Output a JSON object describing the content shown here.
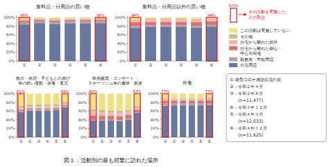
{
  "title": "図１：活動別の最も頻繁に訪れた場所",
  "legend_key": {
    "label": "OO%",
    "text": "その活動を実施した\n人の割合",
    "color": "#E00000"
  },
  "notes": [
    "①:新型コロナ感染症流行前",
    "②：令和２年４月",
    "③：令和２年８月",
    "　　(n=11,477)",
    "④：令和３年１２月",
    "⑤：令和４年３月",
    "　　(n=12,033)",
    "⑥：令和４年１２月",
    "　　(n=11,625)"
  ],
  "chart_data": [
    {
      "type": "bar",
      "stacked": true,
      "title": "食料品・日用品の買い物",
      "categories": [
        "①",
        "②",
        "③",
        "④",
        "⑤",
        "⑥"
      ],
      "series": [
        {
          "name": "自宅周辺",
          "color": "#6878A0",
          "values": [
            84,
            87,
            85,
            86,
            86,
            87
          ]
        },
        {
          "name": "勤務先・学校周辺",
          "color": "#A8A8A8",
          "values": [
            5,
            4,
            4,
            4,
            4,
            4
          ]
        },
        {
          "name": "自宅から離れた都心・\n中心市街地",
          "color": "#E07070",
          "values": [
            4,
            4,
            4,
            4,
            4,
            4
          ]
        },
        {
          "name": "自宅から離れた郊外",
          "color": "#F0B8B0",
          "values": [
            2,
            2,
            2,
            2,
            2,
            2
          ]
        },
        {
          "name": "その他",
          "color": "#C8BC8C",
          "values": [
            2,
            1,
            2,
            2,
            2,
            2
          ]
        },
        {
          "name": "この活動は実施していない",
          "color": "#F0E080",
          "values": [
            3,
            2,
            3,
            2,
            2,
            1
          ]
        }
      ],
      "ylim": [
        0,
        105
      ],
      "yticks": [
        {
          "value": 0,
          "label": "0%"
        },
        {
          "value": 20,
          "label": "20%"
        },
        {
          "value": 40,
          "label": "40%"
        },
        {
          "value": 60,
          "label": "60%"
        },
        {
          "value": 80,
          "label": "80%"
        },
        {
          "value": 100,
          "label": "100%"
        }
      ],
      "annotations": [
        {
          "category": "①",
          "text": "96%",
          "color": "#E00000"
        },
        {
          "category": "⑥",
          "text": "96%",
          "color": "#E00000"
        }
      ]
    },
    {
      "type": "bar",
      "stacked": true,
      "title": "食料品・日用品以外の買い物",
      "categories": [
        "①",
        "②",
        "③",
        "④",
        "⑤",
        "⑥"
      ],
      "series": [
        {
          "color": "#6878A0",
          "values": [
            76,
            78,
            78,
            78,
            77,
            79
          ]
        },
        {
          "color": "#A8A8A8",
          "values": [
            5,
            4,
            4,
            4,
            4,
            4
          ]
        },
        {
          "color": "#E07070",
          "values": [
            8,
            8,
            8,
            8,
            8,
            8
          ]
        },
        {
          "color": "#F0B8B0",
          "values": [
            4,
            5,
            5,
            5,
            5,
            5
          ]
        },
        {
          "color": "#C8BC8C",
          "values": [
            2,
            2,
            2,
            2,
            2,
            2
          ]
        },
        {
          "color": "#F0E080",
          "values": [
            5,
            3,
            3,
            3,
            4,
            2
          ]
        }
      ],
      "ylim": [
        0,
        105
      ],
      "yticks": [
        {
          "value": 0,
          "label": "0%"
        },
        {
          "value": 20,
          "label": "20%"
        },
        {
          "value": 40,
          "label": "40%"
        },
        {
          "value": 60,
          "label": "60%"
        },
        {
          "value": 80,
          "label": "80%"
        },
        {
          "value": 100,
          "label": "100%"
        }
      ],
      "annotations": [
        {
          "category": "①",
          "text": "94%",
          "color": "#E00000"
        },
        {
          "category": "⑥",
          "text": "94%",
          "color": "#E00000"
        }
      ]
    },
    {
      "type": "bar",
      "stacked": true,
      "title": "散歩・休憩・子どもとの遊び\n等の軽い運動・休養・育児",
      "categories": [
        "①",
        "②",
        "③",
        "④",
        "⑤",
        "⑥"
      ],
      "series": [
        {
          "color": "#6878A0",
          "values": [
            58,
            61,
            61,
            61,
            62,
            69
          ]
        },
        {
          "color": "#A8A8A8",
          "values": [
            2,
            2,
            2,
            2,
            2,
            2
          ]
        },
        {
          "color": "#E07070",
          "values": [
            3,
            3,
            3,
            3,
            3,
            3
          ]
        },
        {
          "color": "#F0B8B0",
          "values": [
            5,
            5,
            5,
            5,
            5,
            4
          ]
        },
        {
          "color": "#C8BC8C",
          "values": [
            4,
            4,
            4,
            4,
            4,
            3
          ]
        },
        {
          "color": "#F0E080",
          "values": [
            28,
            25,
            25,
            25,
            24,
            19
          ]
        }
      ],
      "ylim": [
        0,
        105
      ],
      "yticks": [
        {
          "value": 0,
          "label": "0%"
        },
        {
          "value": 20,
          "label": "20%"
        },
        {
          "value": 40,
          "label": "40%"
        },
        {
          "value": 60,
          "label": "60%"
        },
        {
          "value": 80,
          "label": "80%"
        },
        {
          "value": 100,
          "label": "100%"
        }
      ],
      "annotations": [
        {
          "category": "①",
          "text": "61%",
          "color": "#E00000"
        },
        {
          "category": "⑥",
          "text": "69%",
          "color": "#E00000"
        }
      ]
    },
    {
      "type": "bar",
      "stacked": true,
      "title": "映画鑑賞・コンサート・\nスポーツジム等の趣味・娯楽",
      "categories": [
        "①",
        "②",
        "③",
        "④",
        "⑤",
        "⑥"
      ],
      "series": [
        {
          "color": "#6878A0",
          "values": [
            38,
            38,
            38,
            37,
            40,
            56
          ]
        },
        {
          "color": "#A8A8A8",
          "values": [
            2,
            2,
            2,
            2,
            2,
            1
          ]
        },
        {
          "color": "#E07070",
          "values": [
            10,
            9,
            9,
            9,
            9,
            6
          ]
        },
        {
          "color": "#F0B8B0",
          "values": [
            9,
            8,
            8,
            8,
            8,
            5
          ]
        },
        {
          "color": "#C8BC8C",
          "values": [
            5,
            5,
            4,
            5,
            4,
            4
          ]
        },
        {
          "color": "#F0E080",
          "values": [
            36,
            38,
            39,
            39,
            37,
            28
          ]
        }
      ],
      "ylim": [
        0,
        105
      ],
      "yticks": [
        {
          "value": 0,
          "label": "0%"
        },
        {
          "value": 20,
          "label": "20%"
        },
        {
          "value": 40,
          "label": "40%"
        },
        {
          "value": 60,
          "label": "60%"
        },
        {
          "value": 80,
          "label": "80%"
        },
        {
          "value": 100,
          "label": "100%"
        }
      ],
      "annotations": [
        {
          "category": "①",
          "text": "42%",
          "color": "#E00000"
        },
        {
          "category": "⑥",
          "text": "63%",
          "color": "#E00000"
        }
      ]
    },
    {
      "type": "bar",
      "stacked": true,
      "title": "外食",
      "categories": [
        "①",
        "②",
        "③",
        "④",
        "⑤",
        "⑥"
      ],
      "series": [
        {
          "color": "#6878A0",
          "values": [
            72,
            73,
            73,
            73,
            73,
            74
          ]
        },
        {
          "color": "#A8A8A8",
          "values": [
            5,
            4,
            4,
            4,
            4,
            4
          ]
        },
        {
          "color": "#E07070",
          "values": [
            7,
            7,
            7,
            7,
            7,
            7
          ]
        },
        {
          "color": "#F0B8B0",
          "values": [
            4,
            4,
            4,
            4,
            4,
            4
          ]
        },
        {
          "color": "#C8BC8C",
          "values": [
            2,
            2,
            2,
            2,
            2,
            2
          ]
        },
        {
          "color": "#F0E080",
          "values": [
            10,
            10,
            10,
            10,
            10,
            9
          ]
        }
      ],
      "ylim": [
        0,
        105
      ],
      "yticks": [
        {
          "value": 0,
          "label": "0%"
        },
        {
          "value": 20,
          "label": "20%"
        },
        {
          "value": 40,
          "label": "40%"
        },
        {
          "value": 60,
          "label": "60%"
        },
        {
          "value": 80,
          "label": "80%"
        },
        {
          "value": 100,
          "label": "100%"
        }
      ],
      "annotations": [
        {
          "category": "①",
          "text": "77%",
          "color": "#E00000"
        },
        {
          "category": "⑥",
          "text": "77%",
          "color": "#E00000"
        }
      ]
    }
  ]
}
